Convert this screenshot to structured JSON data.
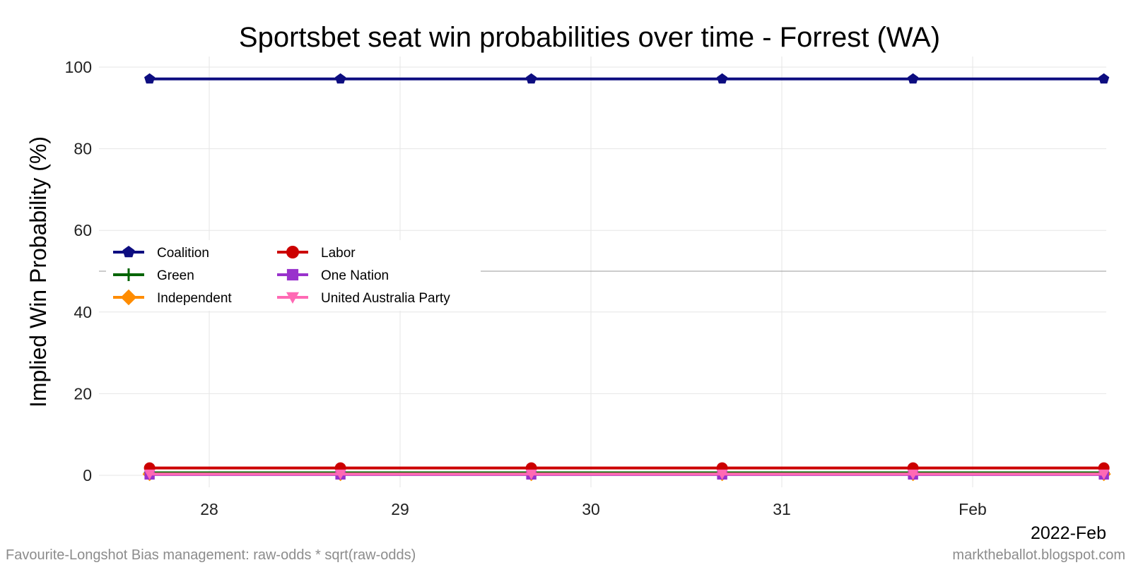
{
  "chart_data": {
    "type": "line",
    "title": "Sportsbet seat win probabilities over time - Forrest (WA)",
    "xlabel": "",
    "ylabel": "Implied Win Probability (%)",
    "x": [
      "2022-01-27",
      "2022-01-28",
      "2022-01-29",
      "2022-01-30",
      "2022-01-31",
      "2022-02-01"
    ],
    "x_tick_labels": [
      "28",
      "29",
      "30",
      "31",
      "Feb"
    ],
    "x_period_label": "2022-Feb",
    "ylim": [
      0,
      100
    ],
    "y_ticks": [
      0,
      20,
      40,
      60,
      80,
      100
    ],
    "grid": true,
    "reference_line": 50,
    "legend_position": "center-left",
    "series": [
      {
        "name": "Coalition",
        "color": "#0d0d80",
        "marker": "pentagon",
        "values": [
          97.1,
          97.1,
          97.1,
          97.1,
          97.1,
          97.1
        ]
      },
      {
        "name": "Labor",
        "color": "#cc0000",
        "marker": "circle",
        "values": [
          1.8,
          1.8,
          1.8,
          1.8,
          1.8,
          1.8
        ]
      },
      {
        "name": "Green",
        "color": "#006400",
        "marker": "plus",
        "values": [
          0.6,
          0.6,
          0.6,
          0.6,
          0.6,
          0.6
        ]
      },
      {
        "name": "One Nation",
        "color": "#9932cc",
        "marker": "square",
        "values": [
          0.2,
          0.2,
          0.2,
          0.2,
          0.2,
          0.2
        ]
      },
      {
        "name": "Independent",
        "color": "#ff8c00",
        "marker": "diamond",
        "values": [
          0.3,
          0.3,
          0.3,
          0.3,
          0.3,
          0.3
        ]
      },
      {
        "name": "United Australia Party",
        "color": "#ff69b4",
        "marker": "triangle-down",
        "values": [
          0.3,
          0.3,
          0.3,
          0.3,
          0.3,
          0.3
        ]
      }
    ]
  },
  "captions": {
    "left": "Favourite-Longshot Bias management: raw-odds * sqrt(raw-odds)",
    "right": "marktheballot.blogspot.com"
  }
}
